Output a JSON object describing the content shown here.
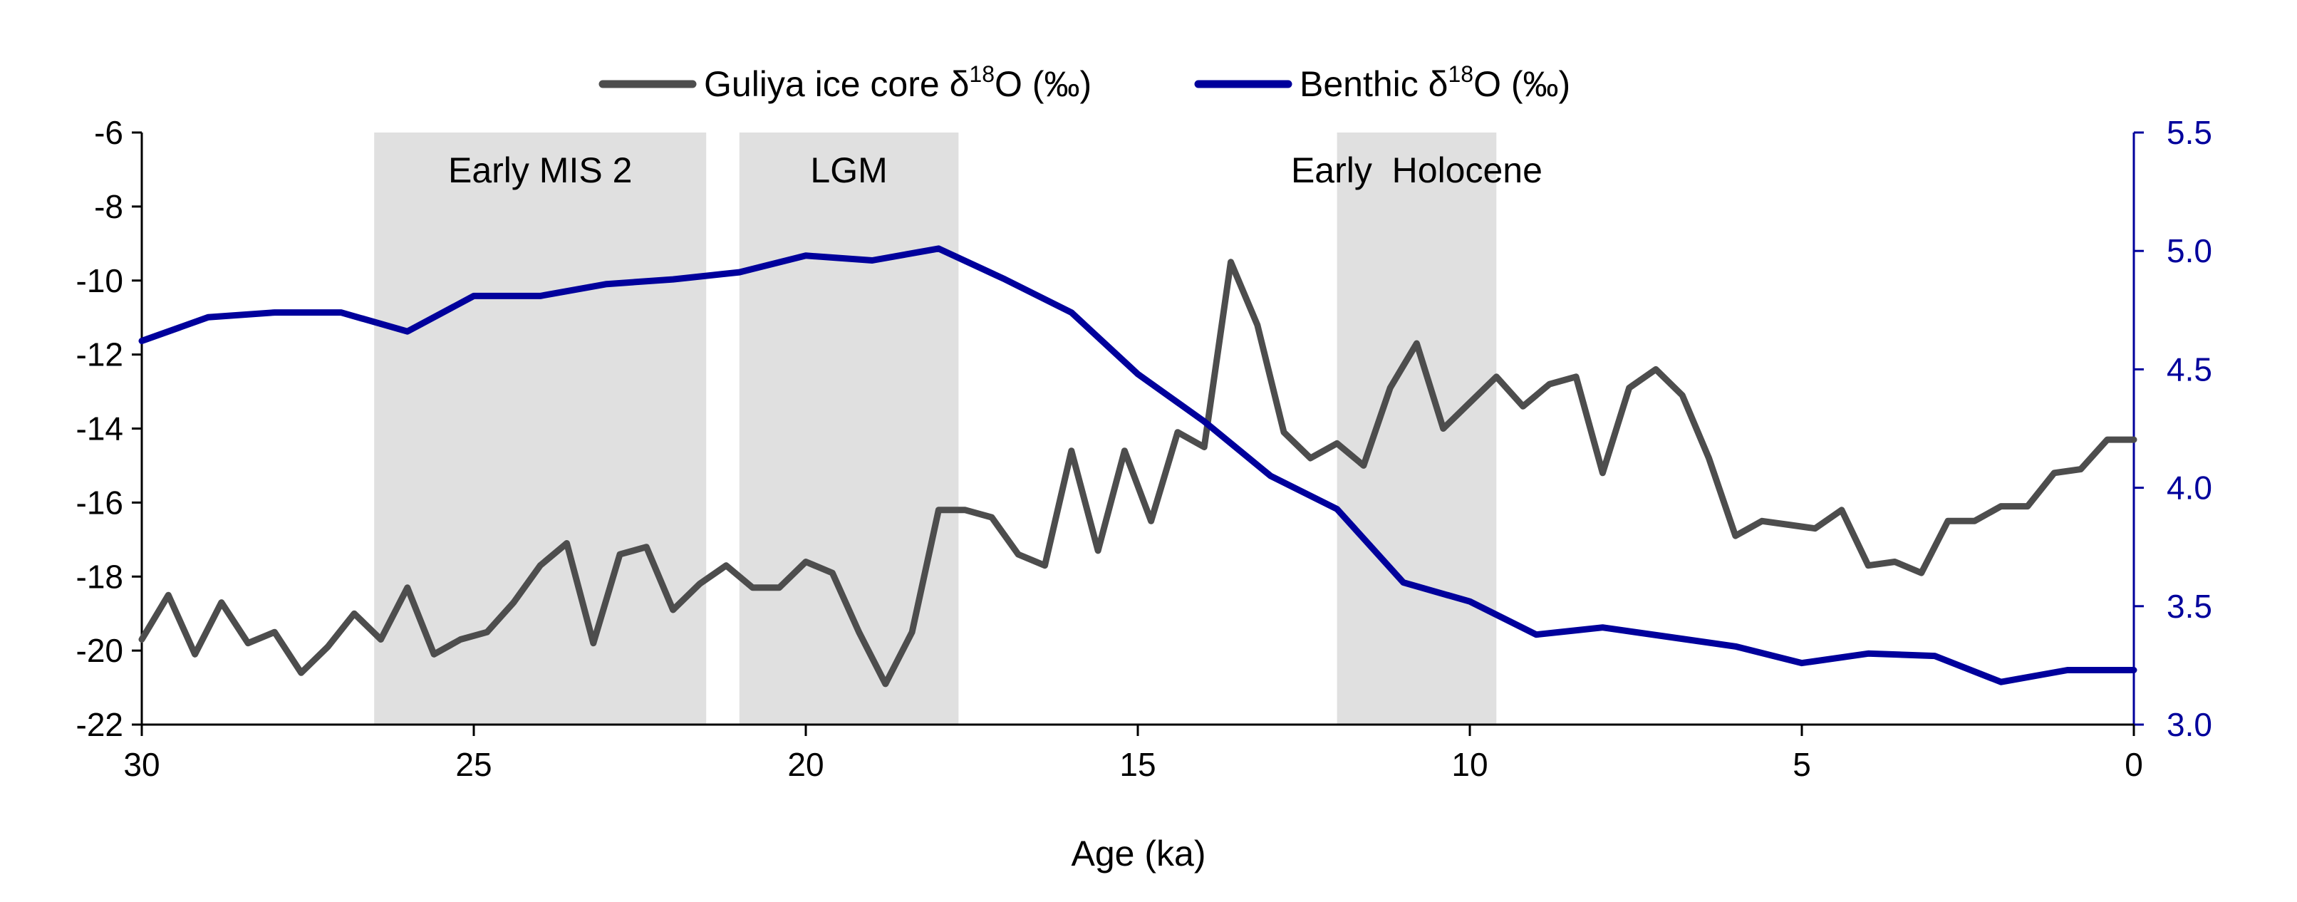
{
  "chart_data": {
    "type": "line",
    "title": "",
    "xlabel": "Age (ka)",
    "x_ticks": [
      "30",
      "25",
      "20",
      "15",
      "10",
      "5",
      "0"
    ],
    "xlim": [
      30,
      0
    ],
    "y_left": {
      "label": "",
      "ylim": [
        -22,
        -6
      ],
      "ticks": [
        "-6",
        "-8",
        "-10",
        "-12",
        "-14",
        "-16",
        "-18",
        "-20",
        "-22"
      ]
    },
    "y_right": {
      "label": "",
      "ylim": [
        3.0,
        5.5
      ],
      "ticks": [
        "5.5",
        "5.0",
        "4.5",
        "4.0",
        "3.5",
        "3.0"
      ]
    },
    "legend": {
      "placement": "top-center",
      "entries": [
        {
          "prefix": "Guliya ice core δ",
          "sup": "18",
          "suffix": "O (‰)"
        },
        {
          "prefix": "Benthic δ",
          "sup": "18",
          "suffix": "O (‰)"
        }
      ]
    },
    "shaded_periods": [
      {
        "label": "Early MIS 2",
        "start": 26.5,
        "end": 21.5
      },
      {
        "label": "LGM",
        "start": 21.0,
        "end": 17.7
      },
      {
        "label": "Early  Holocene",
        "start": 12.0,
        "end": 9.6
      }
    ],
    "series": [
      {
        "name": "Guliya ice core δ18O (‰)",
        "axis": "left",
        "color": "#4d4d4d",
        "points": [
          [
            30.0,
            -19.7
          ],
          [
            29.6,
            -18.5
          ],
          [
            29.2,
            -20.1
          ],
          [
            28.8,
            -18.7
          ],
          [
            28.4,
            -19.8
          ],
          [
            28.0,
            -19.5
          ],
          [
            27.6,
            -20.6
          ],
          [
            27.2,
            -19.9
          ],
          [
            26.8,
            -19.0
          ],
          [
            26.4,
            -19.7
          ],
          [
            26.0,
            -18.3
          ],
          [
            25.6,
            -20.1
          ],
          [
            25.2,
            -19.7
          ],
          [
            24.8,
            -19.5
          ],
          [
            24.4,
            -18.7
          ],
          [
            24.0,
            -17.7
          ],
          [
            23.6,
            -17.1
          ],
          [
            23.2,
            -19.8
          ],
          [
            22.8,
            -17.4
          ],
          [
            22.4,
            -17.2
          ],
          [
            22.0,
            -18.9
          ],
          [
            21.6,
            -18.2
          ],
          [
            21.2,
            -17.7
          ],
          [
            20.8,
            -18.3
          ],
          [
            20.4,
            -18.3
          ],
          [
            20.0,
            -17.6
          ],
          [
            19.6,
            -17.9
          ],
          [
            19.2,
            -19.5
          ],
          [
            18.8,
            -20.9
          ],
          [
            18.4,
            -19.5
          ],
          [
            18.0,
            -16.2
          ],
          [
            17.6,
            -16.2
          ],
          [
            17.2,
            -16.4
          ],
          [
            16.8,
            -17.4
          ],
          [
            16.4,
            -17.7
          ],
          [
            16.0,
            -14.6
          ],
          [
            15.6,
            -17.3
          ],
          [
            15.2,
            -14.6
          ],
          [
            14.8,
            -16.5
          ],
          [
            14.4,
            -14.1
          ],
          [
            14.0,
            -14.5
          ],
          [
            13.6,
            -9.5
          ],
          [
            13.2,
            -11.2
          ],
          [
            12.8,
            -14.1
          ],
          [
            12.4,
            -14.8
          ],
          [
            12.0,
            -14.4
          ],
          [
            11.6,
            -15.0
          ],
          [
            11.2,
            -12.9
          ],
          [
            10.8,
            -11.7
          ],
          [
            10.4,
            -14.0
          ],
          [
            10.0,
            -13.3
          ],
          [
            9.6,
            -12.6
          ],
          [
            9.2,
            -13.4
          ],
          [
            8.8,
            -12.8
          ],
          [
            8.4,
            -12.6
          ],
          [
            8.0,
            -15.2
          ],
          [
            7.6,
            -12.9
          ],
          [
            7.2,
            -12.4
          ],
          [
            6.8,
            -13.1
          ],
          [
            6.4,
            -14.8
          ],
          [
            6.0,
            -16.9
          ],
          [
            5.6,
            -16.5
          ],
          [
            5.2,
            -16.6
          ],
          [
            4.8,
            -16.7
          ],
          [
            4.4,
            -16.2
          ],
          [
            4.0,
            -17.7
          ],
          [
            3.6,
            -17.6
          ],
          [
            3.2,
            -17.9
          ],
          [
            2.8,
            -16.5
          ],
          [
            2.4,
            -16.5
          ],
          [
            2.0,
            -16.1
          ],
          [
            1.6,
            -16.1
          ],
          [
            1.2,
            -15.2
          ],
          [
            0.8,
            -15.1
          ],
          [
            0.4,
            -14.3
          ],
          [
            0.0,
            -14.3
          ]
        ]
      },
      {
        "name": "Benthic δ18O (‰)",
        "axis": "right",
        "color": "#00009c",
        "points": [
          [
            30.0,
            4.62
          ],
          [
            29.0,
            4.72
          ],
          [
            28.0,
            4.74
          ],
          [
            27.0,
            4.74
          ],
          [
            26.0,
            4.66
          ],
          [
            25.0,
            4.81
          ],
          [
            24.0,
            4.81
          ],
          [
            23.0,
            4.86
          ],
          [
            22.0,
            4.88
          ],
          [
            21.0,
            4.91
          ],
          [
            20.0,
            4.98
          ],
          [
            19.0,
            4.96
          ],
          [
            18.0,
            5.01
          ],
          [
            17.0,
            4.88
          ],
          [
            16.0,
            4.74
          ],
          [
            15.0,
            4.48
          ],
          [
            14.0,
            4.28
          ],
          [
            13.0,
            4.05
          ],
          [
            12.0,
            3.91
          ],
          [
            11.0,
            3.6
          ],
          [
            10.0,
            3.52
          ],
          [
            9.0,
            3.38
          ],
          [
            8.0,
            3.41
          ],
          [
            7.0,
            3.37
          ],
          [
            6.0,
            3.33
          ],
          [
            5.0,
            3.26
          ],
          [
            4.0,
            3.3
          ],
          [
            3.0,
            3.29
          ],
          [
            2.0,
            3.18
          ],
          [
            1.0,
            3.23
          ],
          [
            0.0,
            3.23
          ]
        ]
      }
    ]
  }
}
